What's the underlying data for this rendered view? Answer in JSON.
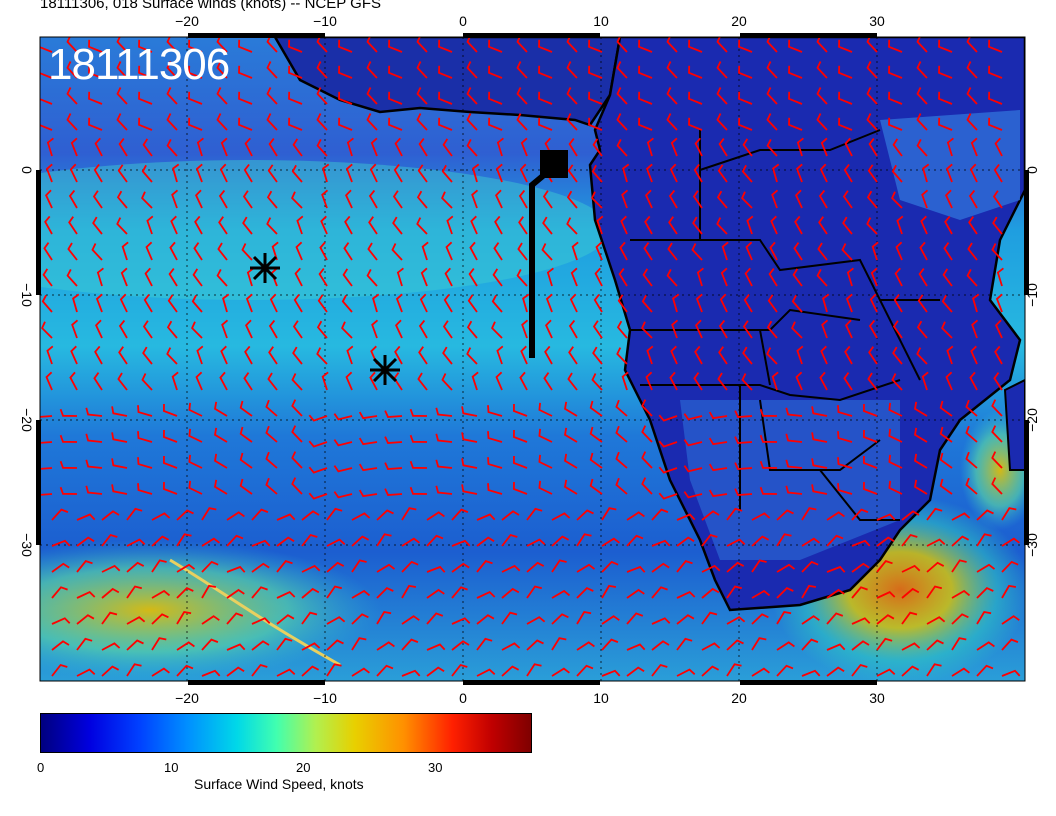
{
  "header": {
    "title": "18111306, 018 Surface winds (knots) -- NCEP GFS"
  },
  "timestamp_overlay": "18111306",
  "map": {
    "lon_ticks": [
      "−20",
      "−10",
      "0",
      "10",
      "20",
      "30"
    ],
    "lat_ticks": [
      "0",
      "−10",
      "−20",
      "−30"
    ],
    "markers": [
      {
        "symbol": "asterisk",
        "lon": -14.5,
        "lat": -8
      },
      {
        "symbol": "asterisk",
        "lon": -5.7,
        "lat": -16
      },
      {
        "symbol": "square",
        "lon": 6.5,
        "lat": 0.5
      }
    ],
    "barb_color": "#ff0000",
    "land_outline_color": "#000000"
  },
  "colorbar": {
    "ticks": [
      "0",
      "10",
      "20",
      "30"
    ],
    "label": "Surface Wind Speed, knots",
    "range": [
      0,
      37
    ]
  }
}
